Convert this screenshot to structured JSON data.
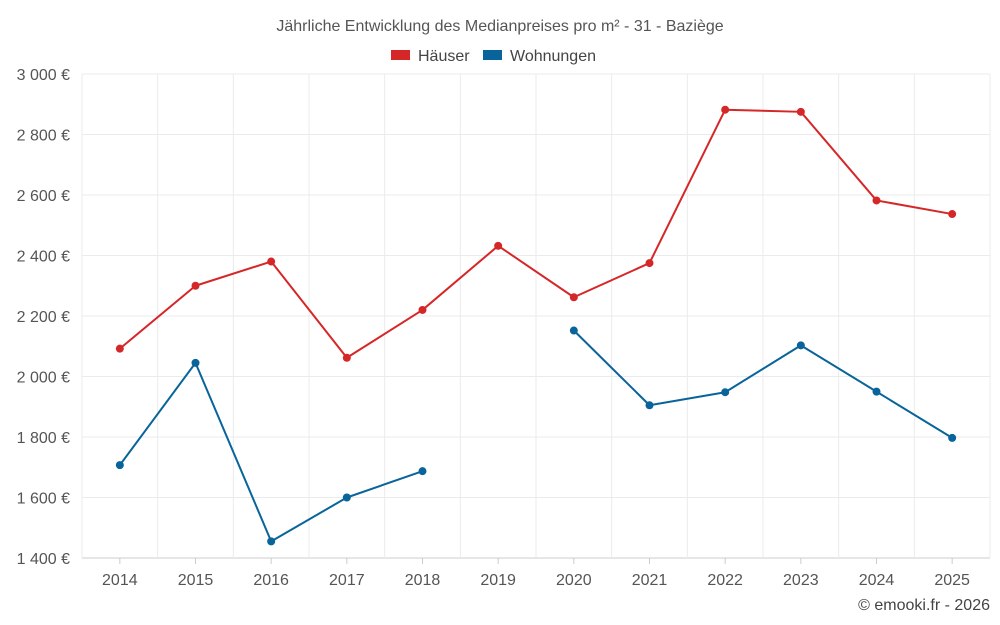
{
  "chart_data": {
    "type": "line",
    "title": "Jährliche Entwicklung des Medianpreises pro m² - 31 - Baziège",
    "xlabel": "",
    "ylabel": "",
    "categories": [
      "2014",
      "2015",
      "2016",
      "2017",
      "2018",
      "2019",
      "2020",
      "2021",
      "2022",
      "2023",
      "2024",
      "2025"
    ],
    "ylim": [
      1400,
      3000
    ],
    "yticks": [
      1400,
      1600,
      1800,
      2000,
      2200,
      2400,
      2600,
      2800,
      3000
    ],
    "ytick_labels": [
      "1 400 €",
      "1 600 €",
      "1 800 €",
      "2 000 €",
      "2 200 €",
      "2 400 €",
      "2 600 €",
      "2 800 €",
      "3 000 €"
    ],
    "legend_position": "top-center",
    "grid": true,
    "series": [
      {
        "name": "Häuser",
        "color": "#d62728",
        "values": [
          2092,
          2300,
          2380,
          2062,
          2220,
          2432,
          2262,
          2375,
          2882,
          2875,
          2582,
          2537
        ]
      },
      {
        "name": "Wohnungen",
        "color": "#08649a",
        "values": [
          1707,
          2045,
          1455,
          1600,
          1687,
          null,
          2152,
          1905,
          1948,
          2103,
          1950,
          1797
        ]
      }
    ],
    "credit": "© emooki.fr - 2026"
  }
}
